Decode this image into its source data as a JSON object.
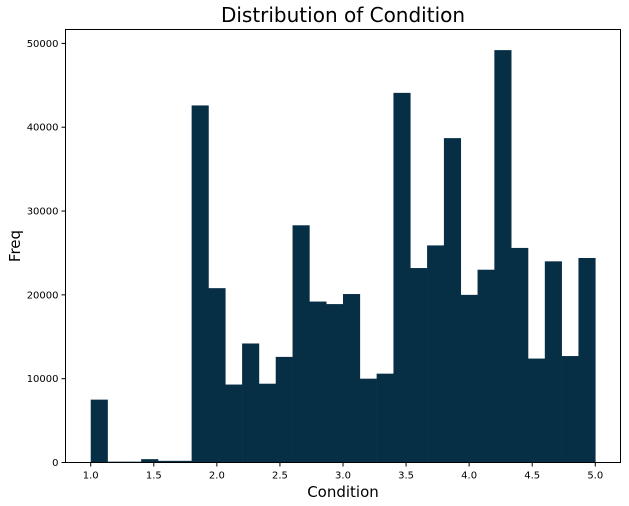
{
  "chart_data": {
    "type": "bar",
    "title": "Distribution of Condition",
    "xlabel": "Condition",
    "ylabel": "Freq",
    "bins": 30,
    "bin_range": [
      1.0,
      5.0
    ],
    "values": [
      7500,
      100,
      100,
      400,
      200,
      200,
      42600,
      20800,
      9300,
      14200,
      9400,
      12600,
      28300,
      19200,
      18900,
      20100,
      10000,
      10600,
      44100,
      23200,
      25900,
      38700,
      20000,
      23000,
      49200,
      25600,
      12400,
      24000,
      12700,
      24400
    ],
    "xlim": [
      0.8,
      5.2
    ],
    "ylim": [
      0,
      51660
    ],
    "xticks": [
      "1.0",
      "1.5",
      "2.0",
      "2.5",
      "3.0",
      "3.5",
      "4.0",
      "4.5",
      "5.0"
    ],
    "xtick_values": [
      1.0,
      1.5,
      2.0,
      2.5,
      3.0,
      3.5,
      4.0,
      4.5,
      5.0
    ],
    "yticks": [
      "0",
      "10000",
      "20000",
      "30000",
      "40000",
      "50000"
    ],
    "ytick_values": [
      0,
      10000,
      20000,
      30000,
      40000,
      50000
    ],
    "bar_color": "#062e45",
    "grid": false,
    "legend": "none"
  }
}
